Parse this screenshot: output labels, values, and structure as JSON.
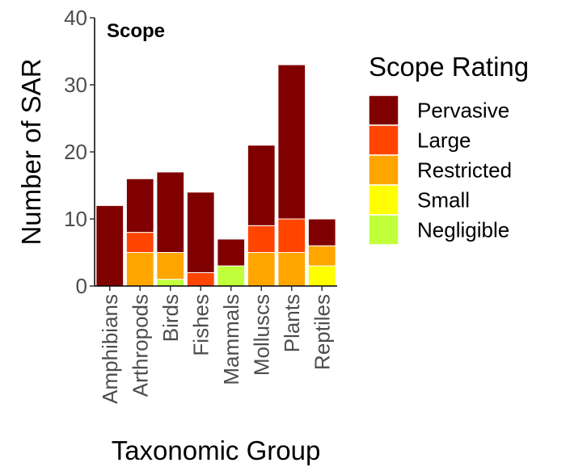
{
  "chart_data": {
    "type": "bar",
    "stacked": true,
    "title": "Scope",
    "xlabel": "Taxonomic Group",
    "ylabel": "Number of SAR",
    "ylim": [
      0,
      40
    ],
    "yticks": [
      "0",
      "10",
      "20",
      "30",
      "40"
    ],
    "categories": [
      "Amphibians",
      "Arthropods",
      "Birds",
      "Fishes",
      "Mammals",
      "Molluscs",
      "Plants",
      "Reptiles"
    ],
    "legend_title": "Scope Rating",
    "legend_position": "right",
    "grid": false,
    "series": [
      {
        "name": "Pervasive",
        "color": "#800000",
        "values": [
          12,
          8,
          12,
          12,
          4,
          12,
          23,
          4
        ]
      },
      {
        "name": "Large",
        "color": "#ff4500",
        "values": [
          0,
          3,
          0,
          2,
          0,
          4,
          5,
          0
        ]
      },
      {
        "name": "Restricted",
        "color": "#ffa500",
        "values": [
          0,
          5,
          4,
          0,
          0,
          5,
          5,
          3
        ]
      },
      {
        "name": "Small",
        "color": "#ffff00",
        "values": [
          0,
          0,
          0,
          0,
          0,
          0,
          0,
          3
        ]
      },
      {
        "name": "Negligible",
        "color": "#c1ff3a",
        "values": [
          0,
          0,
          1,
          0,
          3,
          0,
          0,
          0
        ]
      }
    ]
  }
}
